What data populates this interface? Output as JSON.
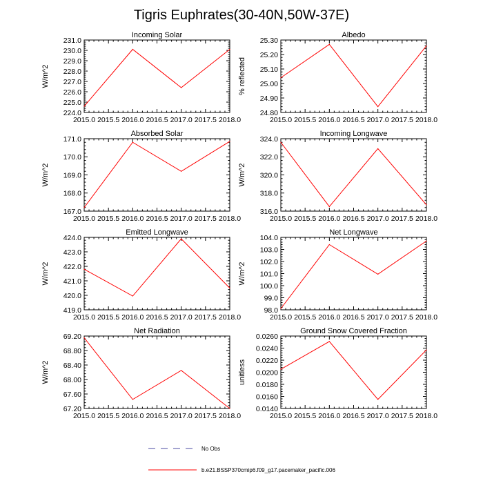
{
  "figure_title": "Tigris Euphrates(30-40N,50W-37E)",
  "chart_data": [
    {
      "type": "line",
      "title": "Incoming Solar",
      "ylabel": "W/m^2",
      "x": [
        2015.0,
        2016.0,
        2017.0,
        2018.0
      ],
      "values": [
        224.6,
        230.1,
        226.4,
        230.1
      ],
      "xlim": [
        2015.0,
        2018.0
      ],
      "ylim": [
        224.0,
        231.0
      ],
      "xticks": [
        "2015.0",
        "2015.5",
        "2016.0",
        "2016.5",
        "2017.0",
        "2017.5",
        "2018.0"
      ],
      "yticks": [
        "224.0",
        "225.0",
        "226.0",
        "227.0",
        "228.0",
        "229.0",
        "230.0",
        "231.0"
      ]
    },
    {
      "type": "line",
      "title": "Albedo",
      "ylabel": "% reflected",
      "x": [
        2015.0,
        2016.0,
        2017.0,
        2018.0
      ],
      "values": [
        25.04,
        25.27,
        24.84,
        25.26
      ],
      "xlim": [
        2015.0,
        2018.0
      ],
      "ylim": [
        24.8,
        25.3
      ],
      "xticks": [
        "2015.0",
        "2015.5",
        "2016.0",
        "2016.5",
        "2017.0",
        "2017.5",
        "2018.0"
      ],
      "yticks": [
        "24.80",
        "24.90",
        "25.00",
        "25.10",
        "25.20",
        "25.30"
      ]
    },
    {
      "type": "line",
      "title": "Absorbed Solar",
      "ylabel": "W/m^2",
      "x": [
        2015.0,
        2016.0,
        2017.0,
        2018.0
      ],
      "values": [
        167.2,
        170.8,
        169.2,
        170.85
      ],
      "xlim": [
        2015.0,
        2018.0
      ],
      "ylim": [
        167.0,
        171.0
      ],
      "xticks": [
        "2015.0",
        "2015.5",
        "2016.0",
        "2016.5",
        "2017.0",
        "2017.5",
        "2018.0"
      ],
      "yticks": [
        "167.0",
        "168.0",
        "169.0",
        "170.0",
        "171.0"
      ]
    },
    {
      "type": "line",
      "title": "Incoming Longwave",
      "ylabel": "W/m^2",
      "x": [
        2015.0,
        2016.0,
        2017.0,
        2018.0
      ],
      "values": [
        323.6,
        316.5,
        322.9,
        316.7
      ],
      "xlim": [
        2015.0,
        2018.0
      ],
      "ylim": [
        316.0,
        324.0
      ],
      "xticks": [
        "2015.0",
        "2015.5",
        "2016.0",
        "2016.5",
        "2017.0",
        "2017.5",
        "2018.0"
      ],
      "yticks": [
        "316.0",
        "318.0",
        "320.0",
        "322.0",
        "324.0"
      ]
    },
    {
      "type": "line",
      "title": "Emitted Longwave",
      "ylabel": "W/m^2",
      "x": [
        2015.0,
        2016.0,
        2017.0,
        2018.0
      ],
      "values": [
        421.8,
        419.95,
        423.9,
        420.5
      ],
      "xlim": [
        2015.0,
        2018.0
      ],
      "ylim": [
        419.0,
        424.0
      ],
      "xticks": [
        "2015.0",
        "2015.5",
        "2016.0",
        "2016.5",
        "2017.0",
        "2017.5",
        "2018.0"
      ],
      "yticks": [
        "419.0",
        "420.0",
        "421.0",
        "422.0",
        "423.0",
        "424.0"
      ]
    },
    {
      "type": "line",
      "title": "Net Longwave",
      "ylabel": "W/m^2",
      "x": [
        2015.0,
        2016.0,
        2017.0,
        2018.0
      ],
      "values": [
        98.1,
        103.4,
        100.95,
        103.7
      ],
      "xlim": [
        2015.0,
        2018.0
      ],
      "ylim": [
        98.0,
        104.0
      ],
      "xticks": [
        "2015.0",
        "2015.5",
        "2016.0",
        "2016.5",
        "2017.0",
        "2017.5",
        "2018.0"
      ],
      "yticks": [
        "98.0",
        "99.0",
        "100.0",
        "101.0",
        "102.0",
        "103.0",
        "104.0"
      ]
    },
    {
      "type": "line",
      "title": "Net Radiation",
      "ylabel": "W/m^2",
      "x": [
        2015.0,
        2016.0,
        2017.0,
        2018.0
      ],
      "values": [
        69.15,
        67.45,
        68.25,
        67.2
      ],
      "xlim": [
        2015.0,
        2018.0
      ],
      "ylim": [
        67.2,
        69.2
      ],
      "xticks": [
        "2015.0",
        "2015.5",
        "2016.0",
        "2016.5",
        "2017.0",
        "2017.5",
        "2018.0"
      ],
      "yticks": [
        "67.20",
        "67.60",
        "68.00",
        "68.40",
        "68.80",
        "69.20"
      ]
    },
    {
      "type": "line",
      "title": "Ground Snow Covered Fraction",
      "ylabel": "unitless",
      "x": [
        2015.0,
        2016.0,
        2017.0,
        2018.0
      ],
      "values": [
        0.0205,
        0.0251,
        0.0155,
        0.0237
      ],
      "xlim": [
        2015.0,
        2018.0
      ],
      "ylim": [
        0.014,
        0.026
      ],
      "xticks": [
        "2015.0",
        "2015.5",
        "2016.0",
        "2016.5",
        "2017.0",
        "2017.5",
        "2018.0"
      ],
      "yticks": [
        "0.0140",
        "0.0160",
        "0.0180",
        "0.0200",
        "0.0220",
        "0.0240",
        "0.0260"
      ]
    }
  ],
  "legend": {
    "obs_label": "No Obs",
    "model_label": "b.e21.BSSP370cmip6.f09_g17.pacemaker_pacific.006",
    "obs_color": "#4a4aa0",
    "model_color": "#ff0000"
  },
  "colors": {
    "series_line": "#ff0000",
    "axis": "#000000"
  }
}
